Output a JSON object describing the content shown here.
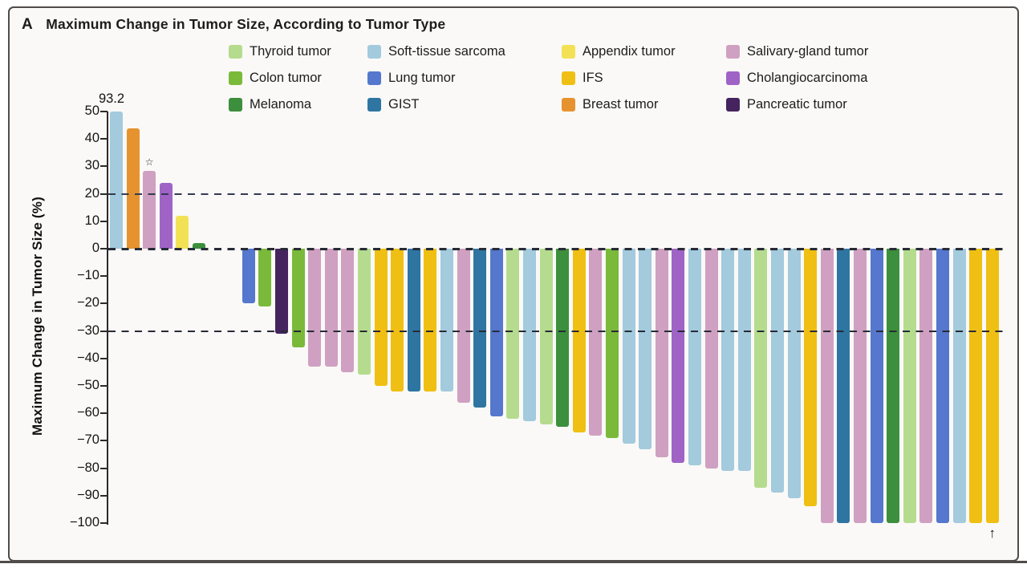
{
  "chart_data": {
    "type": "bar",
    "subtype": "waterfall",
    "panel_label": "A",
    "title": "Maximum Change in Tumor Size, According to Tumor Type",
    "ylabel": "Maximum Change in Tumor Size (%)",
    "ylim": [
      -100,
      50
    ],
    "grid": false,
    "yticks": [
      {
        "v": 50,
        "label": "50"
      },
      {
        "v": 40,
        "label": "40"
      },
      {
        "v": 30,
        "label": "30"
      },
      {
        "v": 20,
        "label": "20"
      },
      {
        "v": 10,
        "label": "10"
      },
      {
        "v": 0,
        "label": "0"
      },
      {
        "v": -10,
        "label": "−10"
      },
      {
        "v": -20,
        "label": "−20"
      },
      {
        "v": -30,
        "label": "−30"
      },
      {
        "v": -40,
        "label": "−40"
      },
      {
        "v": -50,
        "label": "−50"
      },
      {
        "v": -60,
        "label": "−60"
      },
      {
        "v": -70,
        "label": "−70"
      },
      {
        "v": -80,
        "label": "−80"
      },
      {
        "v": -90,
        "label": "−90"
      },
      {
        "v": -100,
        "label": "−100"
      }
    ],
    "reference_lines": [
      {
        "v": 20,
        "style": "navy"
      },
      {
        "v": 0,
        "style": "dark"
      },
      {
        "v": -30,
        "style": "dark"
      }
    ],
    "annotations": {
      "peak_label": "93.2",
      "star_symbol": "☆",
      "arrow_symbol": "↑"
    },
    "bars": [
      {
        "t": "soft",
        "v": 93.2,
        "label": "93.2"
      },
      {
        "t": "breast",
        "v": 44
      },
      {
        "t": "salivary",
        "v": 28.5,
        "star": true
      },
      {
        "t": "cholangio",
        "v": 24
      },
      {
        "t": "appendix",
        "v": 12
      },
      {
        "t": "melanoma",
        "v": 2
      },
      {
        "gap": true
      },
      {
        "gap": true
      },
      {
        "t": "lung",
        "v": -20
      },
      {
        "t": "colon",
        "v": -21
      },
      {
        "t": "pancreatic",
        "v": -31
      },
      {
        "t": "colon",
        "v": -36
      },
      {
        "t": "salivary",
        "v": -43
      },
      {
        "t": "salivary",
        "v": -43
      },
      {
        "t": "salivary",
        "v": -45
      },
      {
        "t": "thyroid",
        "v": -46
      },
      {
        "t": "ifs",
        "v": -50
      },
      {
        "t": "ifs",
        "v": -52
      },
      {
        "t": "gist",
        "v": -52
      },
      {
        "t": "ifs",
        "v": -52
      },
      {
        "t": "soft",
        "v": -52
      },
      {
        "t": "salivary",
        "v": -56
      },
      {
        "t": "gist",
        "v": -58
      },
      {
        "t": "lung",
        "v": -61
      },
      {
        "t": "thyroid",
        "v": -62
      },
      {
        "t": "soft",
        "v": -63
      },
      {
        "t": "thyroid",
        "v": -64
      },
      {
        "t": "melanoma",
        "v": -65
      },
      {
        "t": "ifs",
        "v": -67
      },
      {
        "t": "salivary",
        "v": -68
      },
      {
        "t": "colon",
        "v": -69
      },
      {
        "t": "soft",
        "v": -71
      },
      {
        "t": "soft",
        "v": -73
      },
      {
        "t": "salivary",
        "v": -76
      },
      {
        "t": "cholangio",
        "v": -78
      },
      {
        "t": "soft",
        "v": -79
      },
      {
        "t": "salivary",
        "v": -80
      },
      {
        "t": "soft",
        "v": -81
      },
      {
        "t": "soft",
        "v": -81
      },
      {
        "t": "thyroid",
        "v": -87
      },
      {
        "t": "soft",
        "v": -89
      },
      {
        "t": "soft",
        "v": -91
      },
      {
        "t": "ifs",
        "v": -94
      },
      {
        "t": "salivary",
        "v": -100
      },
      {
        "t": "gist",
        "v": -100
      },
      {
        "t": "salivary",
        "v": -100
      },
      {
        "t": "lung",
        "v": -100
      },
      {
        "t": "melanoma",
        "v": -100
      },
      {
        "t": "thyroid",
        "v": -100
      },
      {
        "t": "salivary",
        "v": -100
      },
      {
        "t": "lung",
        "v": -100
      },
      {
        "t": "soft",
        "v": -100
      },
      {
        "t": "ifs",
        "v": -100
      },
      {
        "t": "ifs",
        "v": -100,
        "arrow": true
      }
    ]
  },
  "colors": {
    "thyroid": "#b5dc8e",
    "colon": "#7ab93a",
    "melanoma": "#3c8f3c",
    "soft": "#a3cadd",
    "lung": "#5577cd",
    "gist": "#2f75a2",
    "appendix": "#f2e155",
    "ifs": "#f0bf13",
    "breast": "#e6932f",
    "salivary": "#cfa0c1",
    "cholangio": "#9f63c6",
    "pancreatic": "#45235f"
  },
  "legend": {
    "columns": [
      [
        {
          "key": "thyroid",
          "label": "Thyroid tumor"
        },
        {
          "key": "colon",
          "label": "Colon tumor"
        },
        {
          "key": "melanoma",
          "label": "Melanoma"
        }
      ],
      [
        {
          "key": "soft",
          "label": "Soft-tissue sarcoma"
        },
        {
          "key": "lung",
          "label": "Lung tumor"
        },
        {
          "key": "gist",
          "label": "GIST"
        }
      ],
      [
        {
          "key": "appendix",
          "label": "Appendix tumor"
        },
        {
          "key": "ifs",
          "label": "IFS"
        },
        {
          "key": "breast",
          "label": "Breast tumor"
        }
      ],
      [
        {
          "key": "salivary",
          "label": "Salivary-gland tumor"
        },
        {
          "key": "cholangio",
          "label": "Cholangiocarcinoma"
        },
        {
          "key": "pancreatic",
          "label": "Pancreatic tumor"
        }
      ]
    ]
  }
}
